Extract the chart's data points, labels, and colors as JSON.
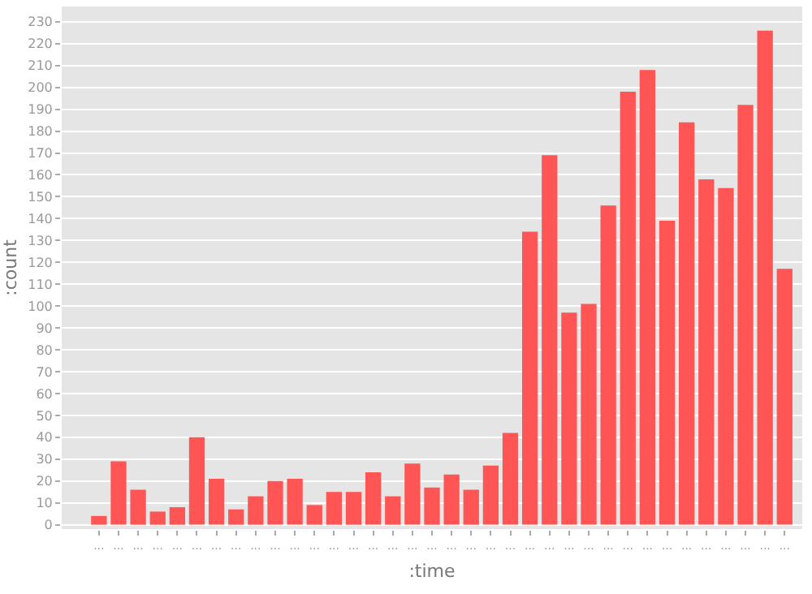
{
  "chart_data": {
    "type": "bar",
    "xlabel": ":time",
    "ylabel": ":count",
    "categories": [
      "...",
      "...",
      "...",
      "...",
      "...",
      "...",
      "...",
      "...",
      "...",
      "...",
      "...",
      "...",
      "...",
      "...",
      "...",
      "...",
      "...",
      "...",
      "...",
      "...",
      "...",
      "...",
      "...",
      "...",
      "...",
      "...",
      "...",
      "...",
      "...",
      "...",
      "...",
      "...",
      "...",
      "...",
      "...",
      "..."
    ],
    "values": [
      4,
      29,
      16,
      6,
      8,
      40,
      21,
      7,
      13,
      20,
      21,
      9,
      15,
      15,
      24,
      13,
      28,
      17,
      23,
      16,
      27,
      42,
      134,
      169,
      97,
      101,
      146,
      198,
      208,
      139,
      184,
      158,
      154,
      192,
      226,
      117
    ],
    "color": "#ff5555",
    "ylim": [
      -2,
      237
    ],
    "yticks": [
      0,
      10,
      20,
      30,
      40,
      50,
      60,
      70,
      80,
      90,
      100,
      110,
      120,
      130,
      140,
      150,
      160,
      170,
      180,
      190,
      200,
      210,
      220,
      230
    ],
    "grid": "y",
    "legend": false
  }
}
